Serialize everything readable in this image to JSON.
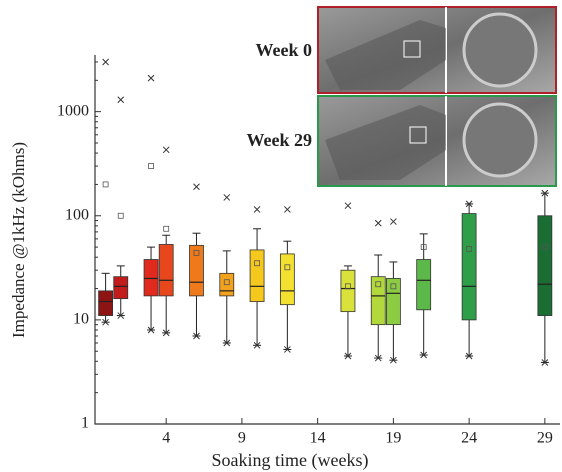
{
  "chart_data": {
    "type": "box",
    "y_label": "Impedance @1kHz (kOhms)",
    "x_label": "Soaking time (weeks)",
    "log_y": true,
    "ylim": [
      1,
      3500
    ],
    "yticks": [
      1,
      10,
      100,
      1000
    ],
    "xlim": [
      -0.7,
      30
    ],
    "xticks": [
      4,
      9,
      14,
      19,
      24,
      29
    ],
    "annotations": [
      "Week 0",
      "Week 29"
    ],
    "annotation_colors": [
      "#b0202a",
      "#2a9a4a"
    ],
    "boxes": [
      {
        "x": 0,
        "color": "#8e1414",
        "low": 9.5,
        "q1": 11,
        "median": 15,
        "q3": 19,
        "high": 28,
        "mean": 200,
        "max": 3000
      },
      {
        "x": 1,
        "color": "#c21c1c",
        "low": 11,
        "q1": 16,
        "median": 21,
        "q3": 26,
        "high": 33,
        "mean": 100,
        "max": 1300
      },
      {
        "x": 3,
        "color": "#e02a1e",
        "low": 8,
        "q1": 17,
        "median": 25,
        "q3": 38,
        "high": 50,
        "mean": 300,
        "max": 2100
      },
      {
        "x": 4,
        "color": "#e8461c",
        "low": 7.5,
        "q1": 17,
        "median": 24,
        "q3": 53,
        "high": 65,
        "mean": 75,
        "max": 430
      },
      {
        "x": 6,
        "color": "#ee7a1c",
        "low": 7,
        "q1": 17,
        "median": 23,
        "q3": 52,
        "high": 68,
        "mean": 44,
        "max": 190
      },
      {
        "x": 8,
        "color": "#f3a21e",
        "low": 6,
        "q1": 17,
        "median": 19,
        "q3": 28,
        "high": 46,
        "mean": 23,
        "max": 150
      },
      {
        "x": 10,
        "color": "#f5c81e",
        "low": 5.7,
        "q1": 15,
        "median": 21,
        "q3": 47,
        "high": 75,
        "mean": 35,
        "max": 115
      },
      {
        "x": 12,
        "color": "#f3e030",
        "low": 5.2,
        "q1": 14,
        "median": 19,
        "q3": 43,
        "high": 57,
        "mean": 32,
        "max": 115
      },
      {
        "x": 16,
        "color": "#d8e23a",
        "low": 4.5,
        "q1": 12,
        "median": 20,
        "q3": 30,
        "high": 33,
        "mean": 21,
        "max": 125
      },
      {
        "x": 18,
        "color": "#b2d83c",
        "low": 4.3,
        "q1": 9,
        "median": 17,
        "q3": 26,
        "high": 42,
        "mean": 22,
        "max": 85
      },
      {
        "x": 19,
        "color": "#8ccc42",
        "low": 4.1,
        "q1": 9,
        "median": 18,
        "q3": 25,
        "high": 36,
        "mean": 21,
        "max": 88
      },
      {
        "x": 21,
        "color": "#5cb848",
        "low": 4.6,
        "q1": 12.5,
        "median": 24,
        "q3": 38,
        "high": 67,
        "mean": 50
      },
      {
        "x": 24,
        "color": "#2e9e48",
        "low": 4.5,
        "q1": 10,
        "median": 21,
        "q3": 105,
        "high": 130,
        "mean": 48,
        "max": 130
      },
      {
        "x": 29,
        "color": "#1a6e34",
        "low": 3.9,
        "q1": 11,
        "median": 22,
        "q3": 100,
        "high": 165,
        "mean": 50,
        "max": 165
      }
    ]
  }
}
